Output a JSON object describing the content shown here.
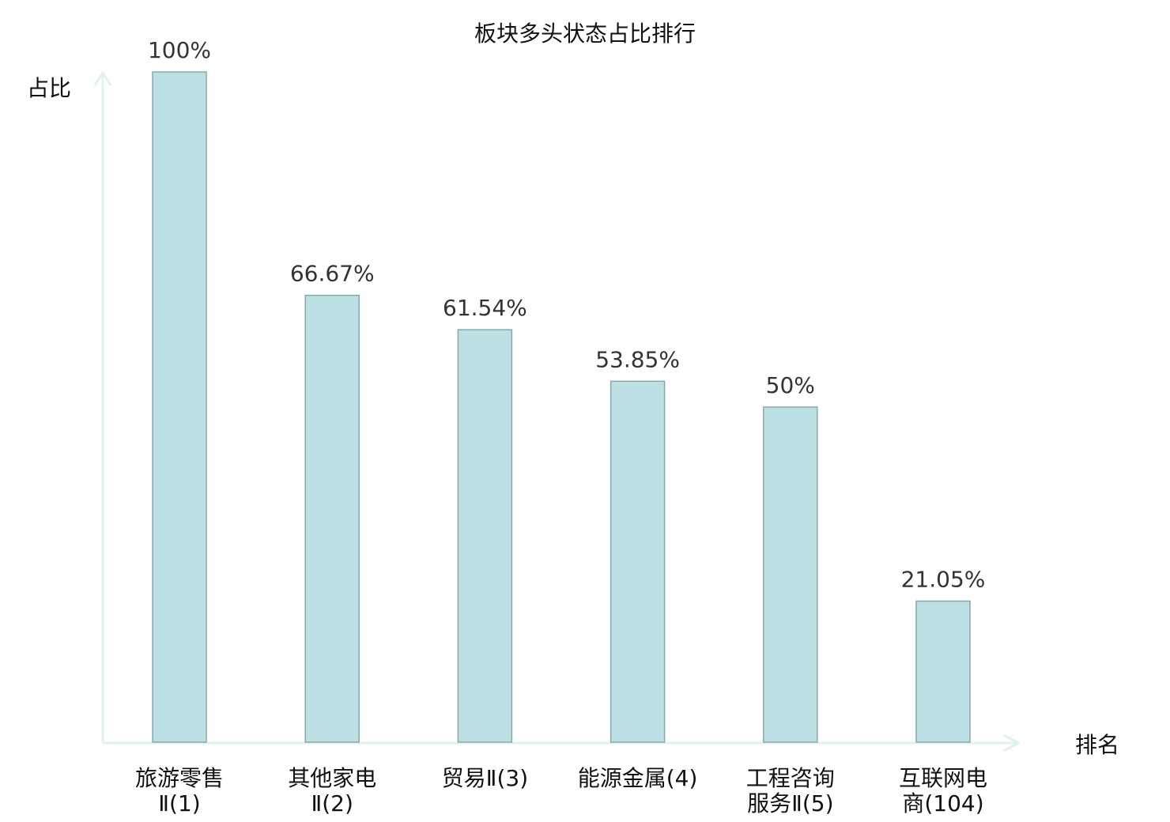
{
  "chart_data": {
    "type": "bar",
    "title": "板块多头状态占比排行",
    "xlabel": "排名",
    "ylabel": "占比",
    "ylim": [
      0,
      100
    ],
    "grid": false,
    "categories": [
      [
        "旅游零售",
        "Ⅱ(1)"
      ],
      [
        "其他家电",
        "Ⅱ(2)"
      ],
      [
        "贸易Ⅱ(3)"
      ],
      [
        "能源金属(4)"
      ],
      [
        "工程咨询",
        "服务Ⅱ(5)"
      ],
      [
        "互联网电",
        "商(104)"
      ]
    ],
    "values": [
      100,
      66.67,
      61.54,
      53.85,
      50,
      21.05
    ],
    "data_labels": [
      "100%",
      "66.67%",
      "61.54%",
      "53.85%",
      "50%",
      "21.05%"
    ],
    "highlighted_index": 5,
    "colors": {
      "bar_fill": "#bce0e3",
      "bar_stroke": "#8aa8aa",
      "axis": "#dff2ef",
      "highlight_label": "#e00000",
      "label": "#111111",
      "data_label": "#333333"
    }
  }
}
